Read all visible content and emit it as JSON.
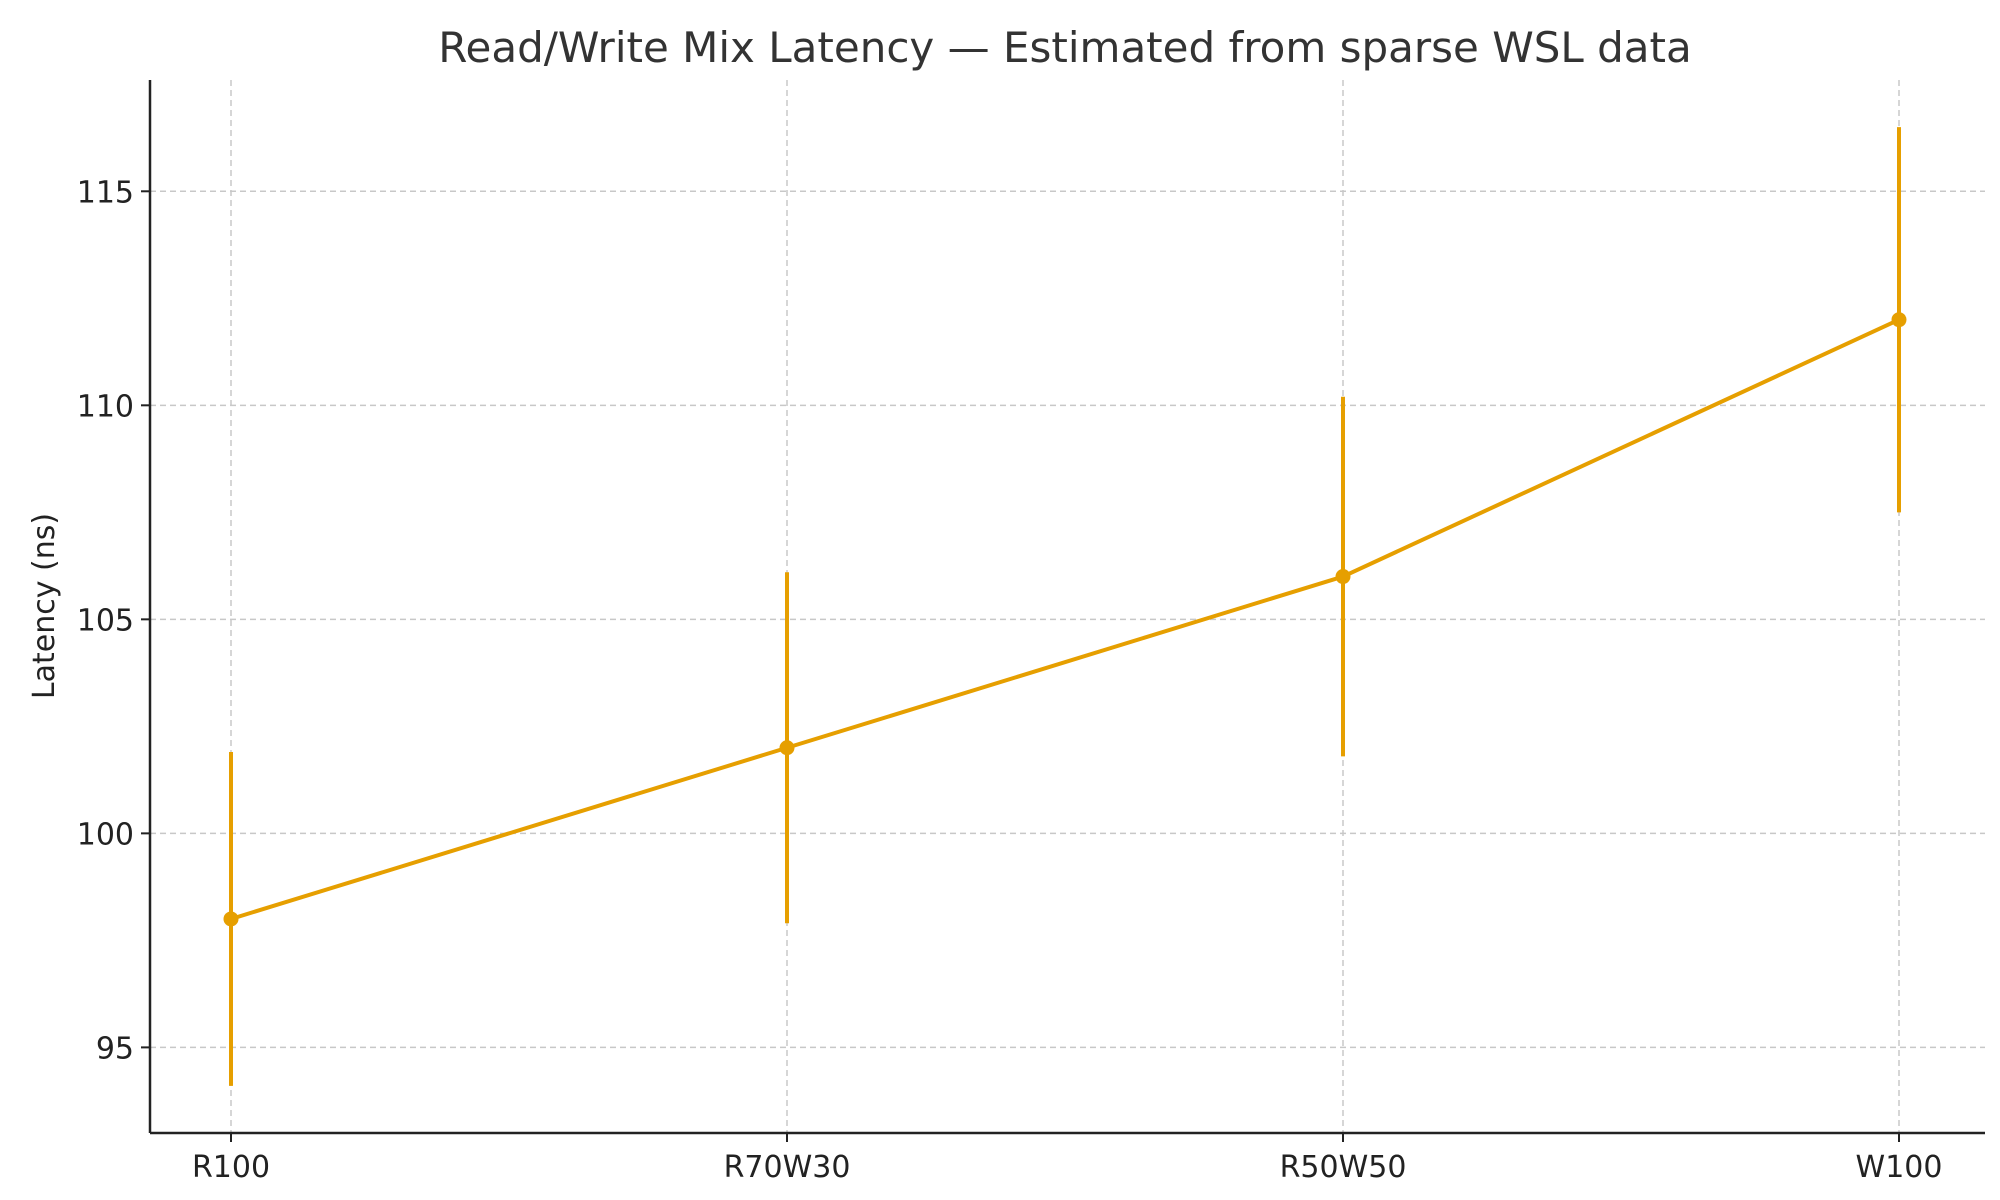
{
  "chart_data": {
    "type": "line",
    "title": "Read/Write Mix Latency — Estimated from sparse WSL data",
    "xlabel": "",
    "ylabel": "Latency (ns)",
    "categories": [
      "R100",
      "R70W30",
      "R50W50",
      "W100"
    ],
    "values": [
      98,
      102,
      106,
      112
    ],
    "error": [
      3.9,
      4.1,
      4.2,
      4.5
    ],
    "ylim": [
      93,
      117.6
    ],
    "yticks": [
      95,
      100,
      105,
      110,
      115
    ],
    "grid": true,
    "color": "#E69F00"
  }
}
